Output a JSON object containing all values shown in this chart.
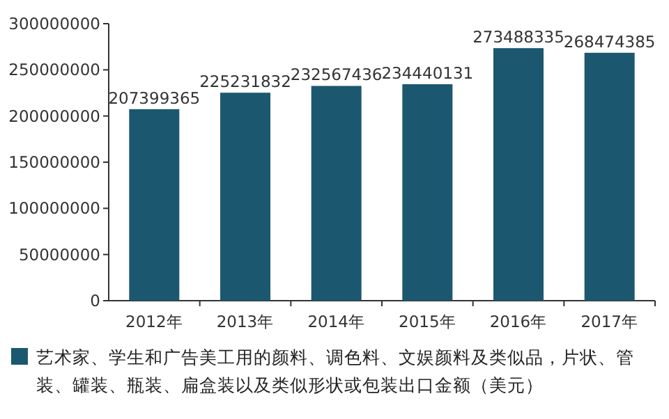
{
  "chart_data": {
    "type": "bar",
    "categories": [
      "2012年",
      "2013年",
      "2014年",
      "2015年",
      "2016年",
      "2017年"
    ],
    "series": [
      {
        "name": "艺术家、学生和广告美工用的颜料、调色料、文娱颜料及类似品，片状、管装、罐装、瓶装、扁盒装以及类似形状或包装出口金额（美元）",
        "color": "#1b5870",
        "values": [
          207399365,
          225231832,
          232567436,
          234440131,
          273488335,
          268474385
        ]
      }
    ],
    "ylim": [
      0,
      300000000
    ],
    "yticks": [
      0,
      50000000,
      100000000,
      150000000,
      200000000,
      250000000,
      300000000
    ],
    "data_labels": true,
    "legend": "bottom",
    "grid": false
  }
}
